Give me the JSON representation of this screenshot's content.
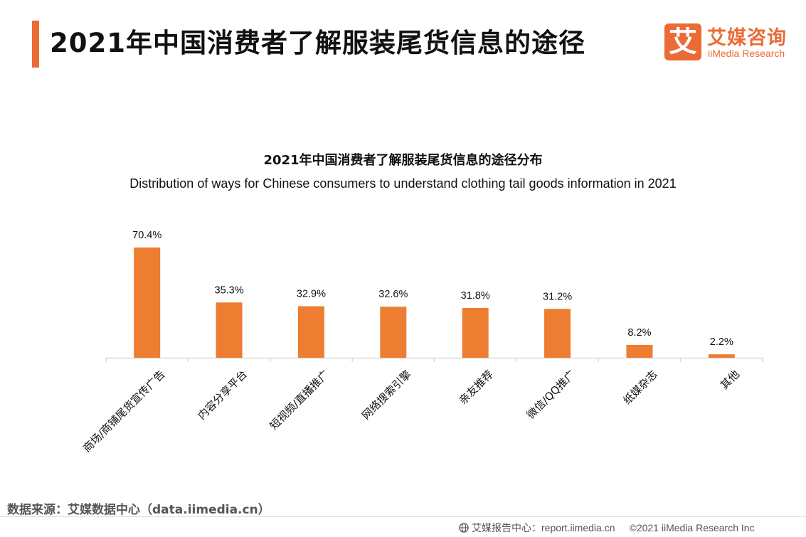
{
  "header": {
    "title": "2021年中国消费者了解服装尾货信息的途径",
    "logo_cn": "艾媒咨询",
    "logo_en": "iiMedia Research",
    "logo_glyph": "艾"
  },
  "colors": {
    "accent": "#ec6a35",
    "bar": "#ed7d31",
    "axis": "#d9d9d9"
  },
  "chart_data": {
    "type": "bar",
    "title": "2021年中国消费者了解服装尾货信息的途径分布",
    "subtitle": "Distribution of ways for Chinese consumers to understand clothing tail goods information in 2021",
    "categories": [
      "商场/商铺尾货宣传广告",
      "内容分享平台",
      "短视频/直播推广",
      "网络搜索引擎",
      "亲友推荐",
      "微信/QQ推广",
      "纸媒杂志",
      "其他"
    ],
    "values": [
      70.4,
      35.3,
      32.9,
      32.6,
      31.8,
      31.2,
      8.2,
      2.2
    ],
    "value_labels": [
      "70.4%",
      "35.3%",
      "32.9%",
      "32.6%",
      "31.8%",
      "31.2%",
      "8.2%",
      "2.2%"
    ],
    "unit": "%",
    "xlabel": "",
    "ylabel": "",
    "ylim": [
      0,
      70.4
    ],
    "grid": false,
    "legend": "none"
  },
  "footer": {
    "source": "数据来源：艾媒数据中心（data.iimedia.cn）",
    "report_center": "艾媒报告中心：report.iimedia.cn",
    "copyright": "©2021  iiMedia Research  Inc"
  }
}
